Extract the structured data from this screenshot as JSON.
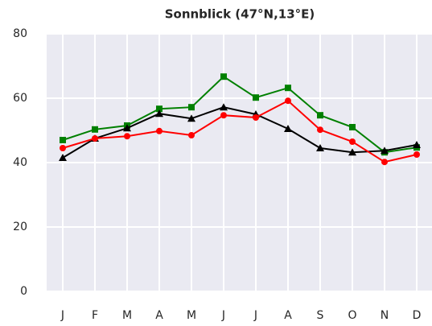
{
  "chart_data": {
    "type": "line",
    "title": "Sonnblick (47°N,13°E)",
    "categories": [
      "J",
      "F",
      "M",
      "A",
      "M",
      "J",
      "J",
      "A",
      "S",
      "O",
      "N",
      "D"
    ],
    "series": [
      {
        "color": "#008000",
        "marker": "square",
        "values": [
          47,
          50.3,
          51.5,
          56.7,
          57.2,
          66.7,
          60.2,
          63.2,
          54.7,
          51,
          43.2,
          44.7
        ]
      },
      {
        "color": "#000000",
        "marker": "triangle",
        "values": [
          41.5,
          47.5,
          50.7,
          55.2,
          53.7,
          57.2,
          55,
          50.5,
          44.5,
          43.2,
          43.7,
          45.5
        ]
      },
      {
        "color": "#ff0000",
        "marker": "circle",
        "values": [
          44.5,
          47.5,
          48.2,
          49.8,
          48.5,
          54.7,
          54,
          59.2,
          50.2,
          46.5,
          40.2,
          42.5
        ]
      }
    ],
    "ylim": [
      0,
      80
    ],
    "yticks": [
      0,
      20,
      40,
      60,
      80
    ],
    "grid": true
  }
}
